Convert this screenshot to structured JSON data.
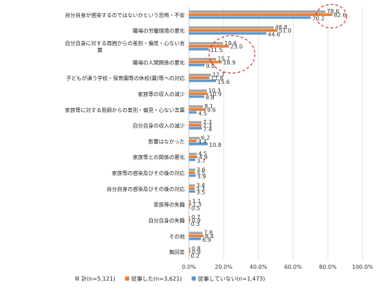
{
  "chart_data": {
    "type": "bar",
    "orientation": "horizontal",
    "categories": [
      "自分自身が感染するのではないかという恐怖・不安",
      "職場の労働環境の悪化",
      "自分自身に対する周囲からの差別・偏見・心ない言葉",
      "職場の人間関係の悪化",
      "子どもが通う学校・保育園等の休校(園)等への対応",
      "家族等の収入の減少",
      "家族等に対する周囲からの差別・偏見・心ない言葉",
      "自分自身の収入の減少",
      "影響はなかった",
      "家族等との関係の悪化",
      "家族等の感染及びその後の対応",
      "自分自身の感染及びその後の対応",
      "家族等の失職",
      "自分自身の失職",
      "その他",
      "無回答"
    ],
    "series": [
      {
        "name": "計(n=5,121)",
        "color": "#a5a5a5",
        "values": [
          78.6,
          48.8,
          19.6,
          15.7,
          12.7,
          10.3,
          8.1,
          7.3,
          6.2,
          4.5,
          3.6,
          3.4,
          1.1,
          0.7,
          7.8,
          0.8
        ]
      },
      {
        "name": "従事した(n=3,621)",
        "color": "#ed7d31",
        "values": [
          82.6,
          51.0,
          23.0,
          18.9,
          11.8,
          10.9,
          9.6,
          7.3,
          4.4,
          4.9,
          3.5,
          3.3,
          1.3,
          0.9,
          8.4,
          0.9
        ]
      },
      {
        "name": "従事していない(n=1,473)",
        "color": "#5b9bd5",
        "values": [
          70.2,
          44.6,
          11.5,
          9.0,
          15.6,
          8.8,
          4.5,
          7.4,
          10.8,
          3.7,
          3.9,
          3.5,
          0.5,
          0.3,
          6.9,
          0.2
        ]
      }
    ],
    "xlim": [
      0,
      100
    ],
    "xticks": [
      "0.0%",
      "20.0%",
      "40.0%",
      "60.0%",
      "80.0%",
      "100.0%"
    ],
    "legend_position": "bottom",
    "annotations": [
      "dashed-circle around top bar labels",
      "dashed-circle around 3rd and 4th bar labels"
    ],
    "grid": true
  }
}
